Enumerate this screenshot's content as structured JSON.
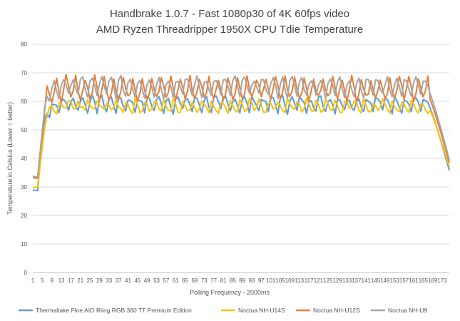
{
  "chart_data": {
    "type": "line",
    "title": "Handbrake 1.0.7 - Fast 1080p30 of 4K 60fps video",
    "subtitle": "AMD Ryzen Threadripper 1950X CPU Tdie Temperature",
    "xlabel": "Polling Frequency - 2000ms",
    "ylabel": "Temperature in Celsius (Lower = better)",
    "ylim": [
      0,
      80
    ],
    "yticks": [
      0,
      10,
      20,
      30,
      40,
      50,
      60,
      70,
      80
    ],
    "x_range": [
      1,
      176
    ],
    "x_tick_labels": [
      "1",
      "5",
      "9",
      "13",
      "17",
      "21",
      "25",
      "29",
      "33",
      "37",
      "41",
      "45",
      "49",
      "53",
      "57",
      "61",
      "65",
      "69",
      "73",
      "77",
      "81",
      "85",
      "89",
      "93",
      "97",
      "101",
      "105",
      "109",
      "113",
      "117",
      "121",
      "125",
      "129",
      "133",
      "137",
      "141",
      "145",
      "149",
      "153",
      "157",
      "161",
      "165",
      "169",
      "173"
    ],
    "grid": true,
    "legend_position": "bottom",
    "series": [
      {
        "name": "Thermaltake Floe AIO Riing RGB 360 TT Premium Edition",
        "color": "#5B9BD5",
        "shape": {
          "start": 28.8,
          "ramp_to": 54,
          "base": 56.5,
          "peak": 62.5,
          "end": 35.8
        }
      },
      {
        "name": "Noctua NH-U14S",
        "color": "#FFC000",
        "shape": {
          "start": 29.8,
          "ramp_to": 51,
          "base": 55.8,
          "peak": 60.5,
          "end": 37
        }
      },
      {
        "name": "Noctua NH-U12S",
        "color": "#ED7D31",
        "shape": {
          "start": 33.2,
          "ramp_to": 57,
          "base": 59.5,
          "peak": 69,
          "end": 38.5
        }
      },
      {
        "name": "Noctua NH-U9",
        "color": "#A5A5A5",
        "shape": {
          "start": 33.5,
          "ramp_to": 58,
          "base": 61.5,
          "peak": 69.5,
          "end": 39.5
        }
      }
    ]
  }
}
